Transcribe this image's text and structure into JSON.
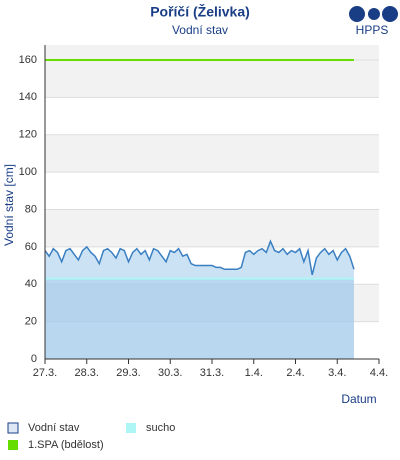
{
  "chart_data": {
    "type": "line",
    "title": "Poříčí (Želivka)",
    "subtitle": "Vodní stav",
    "logo": "HPPS",
    "x_label": "Datum",
    "y_label": "Vodní stav [cm]",
    "xlim": [
      0,
      8
    ],
    "xticks": [
      {
        "value": 0,
        "label": "27.3."
      },
      {
        "value": 1,
        "label": "28.3."
      },
      {
        "value": 2,
        "label": "29.3."
      },
      {
        "value": 3,
        "label": "30.3."
      },
      {
        "value": 4,
        "label": "31.3."
      },
      {
        "value": 5,
        "label": "1.4."
      },
      {
        "value": 6,
        "label": "2.4."
      },
      {
        "value": 7,
        "label": "3.4."
      },
      {
        "value": 8,
        "label": "4.4."
      }
    ],
    "ylim": [
      0,
      168
    ],
    "yticks": [
      0,
      20,
      40,
      60,
      80,
      100,
      120,
      140,
      160
    ],
    "grid": true,
    "series": [
      {
        "name": "Vodní stav",
        "color": "#3a7fc1",
        "x": [
          0,
          0.1,
          0.2,
          0.3,
          0.4,
          0.5,
          0.6,
          0.7,
          0.8,
          0.9,
          1,
          1.1,
          1.2,
          1.3,
          1.4,
          1.5,
          1.6,
          1.7,
          1.8,
          1.9,
          2,
          2.1,
          2.2,
          2.3,
          2.4,
          2.5,
          2.6,
          2.7,
          2.8,
          2.9,
          3,
          3.1,
          3.2,
          3.3,
          3.4,
          3.5,
          3.6,
          3.7,
          3.8,
          3.9,
          4,
          4.1,
          4.2,
          4.3,
          4.4,
          4.5,
          4.6,
          4.7,
          4.8,
          4.9,
          5,
          5.1,
          5.2,
          5.3,
          5.4,
          5.5,
          5.6,
          5.7,
          5.8,
          5.9,
          6,
          6.1,
          6.2,
          6.3,
          6.4,
          6.5,
          6.6,
          6.7,
          6.8,
          6.9,
          7,
          7.1,
          7.2,
          7.3,
          7.4
        ],
        "values": [
          58,
          55,
          59,
          57,
          52,
          58,
          59,
          56,
          53,
          58,
          60,
          57,
          55,
          51,
          58,
          59,
          57,
          54,
          59,
          58,
          52,
          57,
          59,
          56,
          58,
          53,
          59,
          58,
          55,
          52,
          58,
          57,
          59,
          55,
          56,
          51,
          50,
          50,
          50,
          50,
          50,
          49,
          49,
          48,
          48,
          48,
          48,
          49,
          57,
          58,
          56,
          58,
          59,
          57,
          63,
          58,
          57,
          59,
          56,
          58,
          57,
          59,
          52,
          58,
          45,
          54,
          57,
          59,
          56,
          58,
          53,
          57,
          59,
          55,
          48
        ]
      }
    ],
    "thresholds": [
      {
        "name": "sucho",
        "color": "#aef5f5",
        "value": 43
      },
      {
        "name": "1.SPA (bdělost)",
        "color": "#66dd00",
        "value": 160
      }
    ]
  }
}
